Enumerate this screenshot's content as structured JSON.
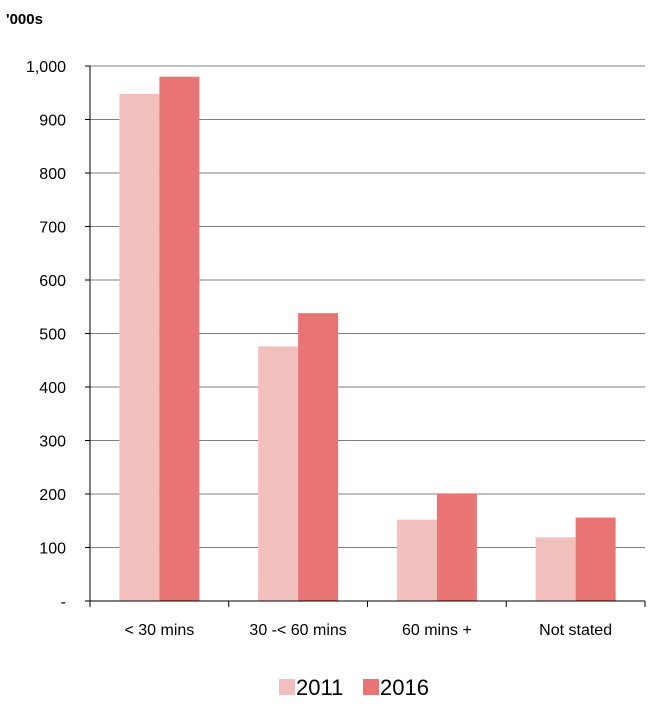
{
  "chart_data": {
    "type": "bar",
    "unit_label": "'000s",
    "categories": [
      "< 30 mins",
      "30 -< 60 mins",
      "60 mins +",
      "Not stated"
    ],
    "series": [
      {
        "name": "2011",
        "values": [
          948,
          476,
          152,
          119
        ],
        "color": "#f2c0bc"
      },
      {
        "name": "2016",
        "values": [
          980,
          538,
          200,
          156
        ],
        "color": "#e87474"
      }
    ],
    "yticks": [
      "-",
      "100",
      "200",
      "300",
      "400",
      "500",
      "600",
      "700",
      "800",
      "900",
      "1,000"
    ],
    "ylim": [
      0,
      1000
    ],
    "grid": true,
    "legend_position": "bottom-center",
    "gridline_color": "#7f7f7f",
    "axis_color": "#000000"
  }
}
